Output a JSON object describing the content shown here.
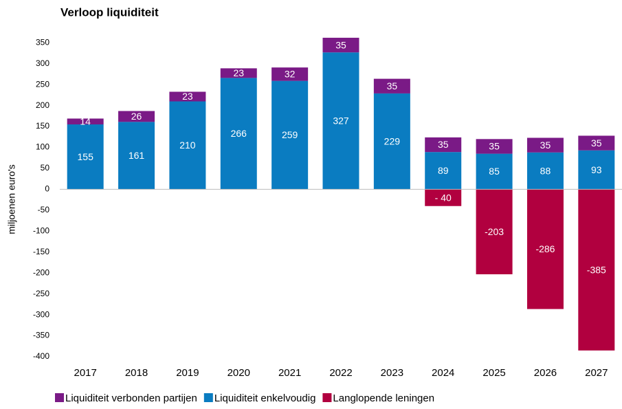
{
  "chart_data": {
    "type": "bar",
    "title": "Verloop liquiditeit",
    "y_label": "miljoenen euro's",
    "categories": [
      "2017",
      "2018",
      "2019",
      "2020",
      "2021",
      "2022",
      "2023",
      "2024",
      "2025",
      "2026",
      "2027"
    ],
    "series": [
      {
        "name": "Liquiditeit verbonden partijen",
        "color": "#7a1a86",
        "values": [
          14,
          26,
          23,
          23,
          32,
          35,
          35,
          35,
          35,
          35,
          35
        ]
      },
      {
        "name": "Liquiditeit enkelvoudig",
        "color": "#0a7cc1",
        "values": [
          155,
          161,
          210,
          266,
          259,
          327,
          229,
          89,
          85,
          88,
          93
        ]
      },
      {
        "name": "Langlopende leningen",
        "color": "#b1003f",
        "values": [
          null,
          null,
          null,
          null,
          null,
          null,
          null,
          -40,
          -203,
          -286,
          -385
        ],
        "value_labels": [
          null,
          null,
          null,
          null,
          null,
          null,
          null,
          "- 40",
          "-203",
          "-286",
          "-385"
        ]
      }
    ],
    "stack_order": [
      1,
      0,
      2
    ],
    "ylim": [
      -400,
      375
    ],
    "yticks": [
      -400,
      -350,
      -300,
      -250,
      -200,
      -150,
      -100,
      -50,
      0,
      50,
      100,
      150,
      200,
      250,
      300,
      350
    ],
    "grid": false,
    "legend": "bottom"
  }
}
